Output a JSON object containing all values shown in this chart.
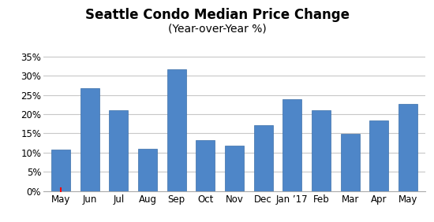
{
  "title": "Seattle Condo Median Price Change",
  "subtitle": "(Year-over-Year %)",
  "categories": [
    "May",
    "Jun",
    "Jul",
    "Aug",
    "Sep",
    "Oct",
    "Nov",
    "Dec",
    "Jan ’17",
    "Feb",
    "Mar",
    "Apr",
    "May"
  ],
  "values": [
    10.8,
    26.7,
    21.1,
    11.0,
    31.7,
    13.3,
    11.7,
    17.1,
    23.9,
    21.1,
    14.8,
    18.4,
    22.7
  ],
  "bar_color": "#4e86c8",
  "bar_edge_color": "#3a6ea8",
  "background_color": "#FFFFFF",
  "grid_color": "#C8C8C8",
  "ylim": [
    0,
    37
  ],
  "yticks": [
    0,
    5,
    10,
    15,
    20,
    25,
    30,
    35
  ],
  "title_fontsize": 12,
  "subtitle_fontsize": 10,
  "tick_fontsize": 8.5,
  "red_marker_color": "#FF0000"
}
